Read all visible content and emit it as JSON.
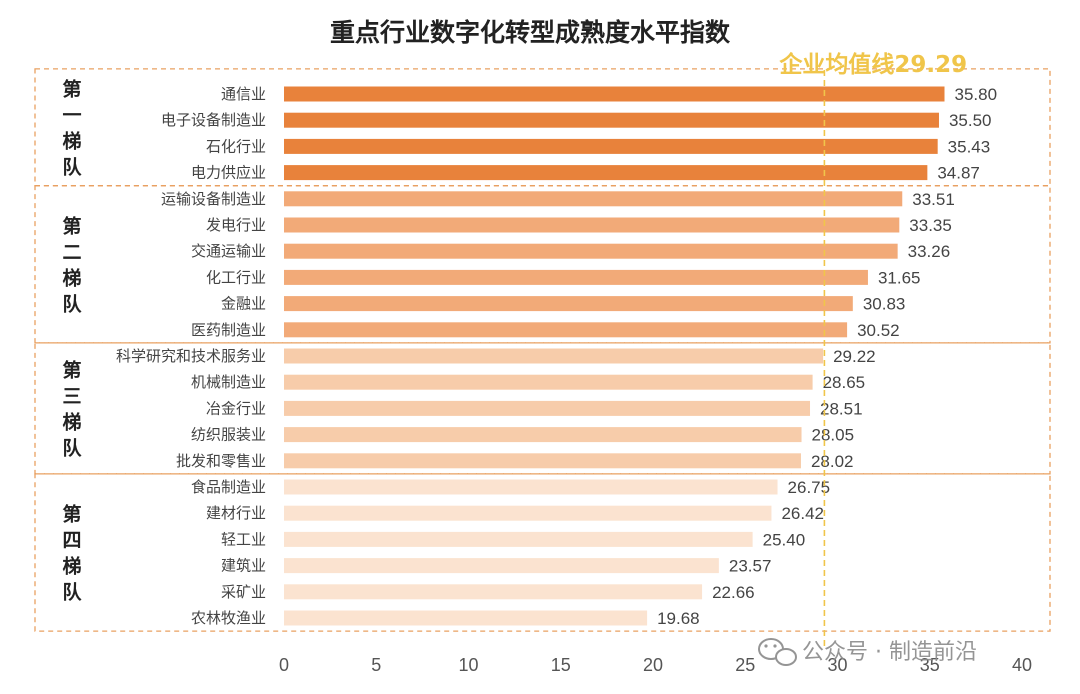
{
  "chart_data": {
    "type": "bar",
    "orientation": "horizontal",
    "title": "重点行业数字化转型成熟度水平指数",
    "xlim": [
      0,
      40
    ],
    "xticks": [
      "0",
      "5",
      "10",
      "15",
      "20",
      "25",
      "30",
      "35",
      "40"
    ],
    "reference_line": {
      "label": "企业均值线29.29",
      "value": 29.29,
      "color": "#f0c54a"
    },
    "tiers": [
      {
        "label": "第一梯队",
        "color": "#e8823b",
        "categories": [
          "通信业",
          "电子设备制造业",
          "石化行业",
          "电力供应业"
        ],
        "values": [
          35.8,
          35.5,
          35.43,
          34.87
        ]
      },
      {
        "label": "第二梯队",
        "color": "#f2aa78",
        "categories": [
          "运输设备制造业",
          "发电行业",
          "交通运输业",
          "化工行业",
          "金融业",
          "医药制造业"
        ],
        "values": [
          33.51,
          33.35,
          33.26,
          31.65,
          30.83,
          30.52
        ]
      },
      {
        "label": "第三梯队",
        "color": "#f7ccaa",
        "categories": [
          "科学研究和技术服务业",
          "机械制造业",
          "冶金行业",
          "纺织服装业",
          "批发和零售业"
        ],
        "values": [
          29.22,
          28.65,
          28.51,
          28.05,
          28.02
        ]
      },
      {
        "label": "第四梯队",
        "color": "#fbe3d0",
        "categories": [
          "食品制造业",
          "建材行业",
          "轻工业",
          "建筑业",
          "采矿业",
          "农林牧渔业"
        ],
        "values": [
          26.75,
          26.42,
          25.4,
          23.57,
          22.66,
          19.68
        ]
      }
    ]
  },
  "watermark": {
    "text": "公众号 · 制造前沿",
    "icon": "wechat-icon"
  }
}
